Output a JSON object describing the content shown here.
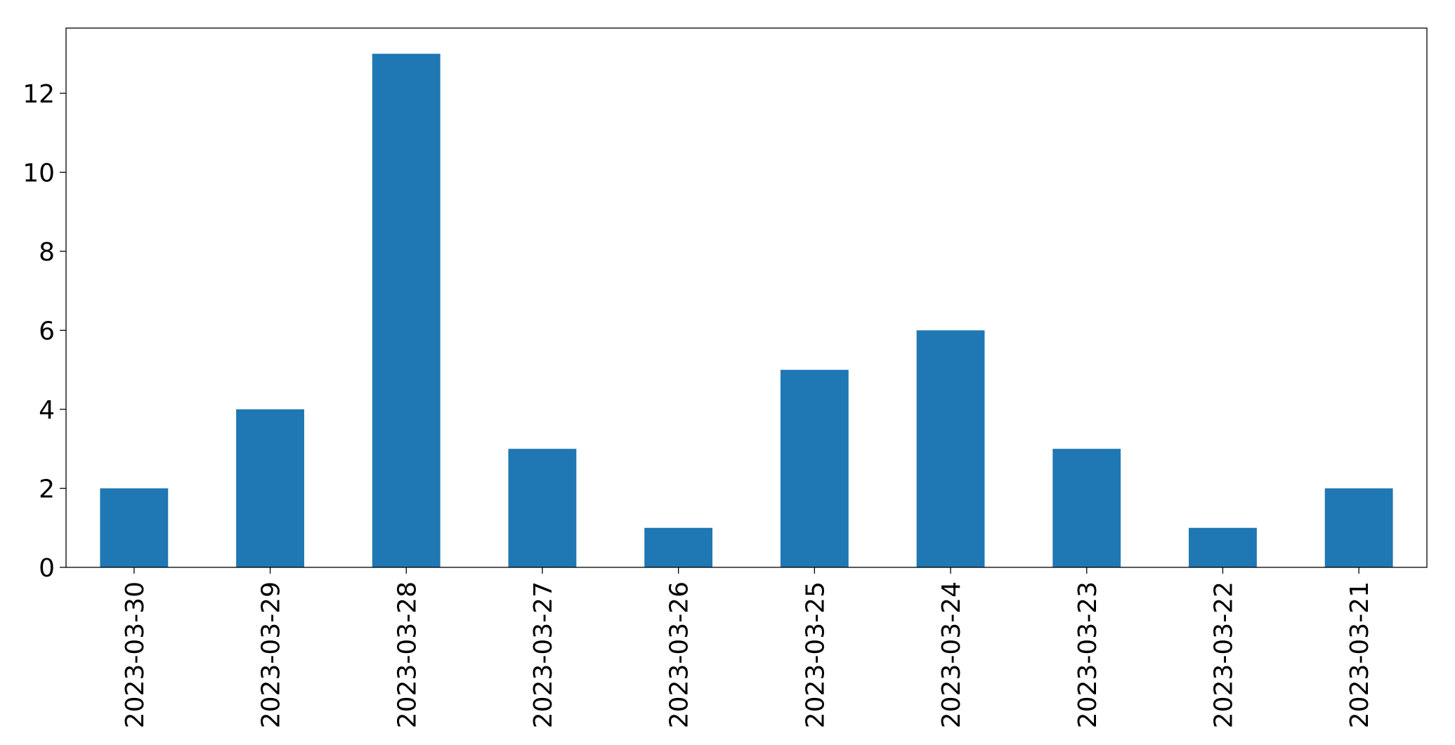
{
  "chart_data": {
    "type": "bar",
    "categories": [
      "2023-03-30",
      "2023-03-29",
      "2023-03-28",
      "2023-03-27",
      "2023-03-26",
      "2023-03-25",
      "2023-03-24",
      "2023-03-23",
      "2023-03-22",
      "2023-03-21"
    ],
    "values": [
      2,
      4,
      13,
      3,
      1,
      5,
      6,
      3,
      1,
      2
    ],
    "color": "#1f77b4",
    "ylim": [
      0,
      13.65
    ],
    "yticks": [
      0,
      2,
      4,
      6,
      8,
      10,
      12
    ],
    "grid": false
  }
}
